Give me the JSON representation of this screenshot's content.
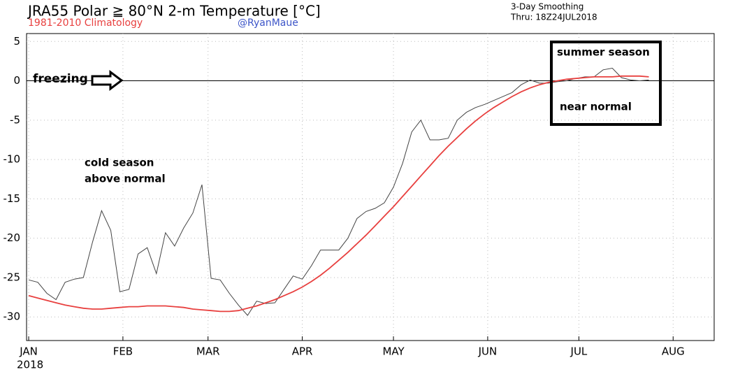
{
  "chart_data": {
    "type": "line",
    "title": "JRA55 Polar ≧ 80°N 2-m Temperature [°C]",
    "credit": "@RyanMaue",
    "note": "3-Day Smoothing",
    "valid_time": "Thru: 18Z24JUL2018",
    "year_label": "2018",
    "annotations": [
      "freezing",
      "cold season",
      "above normal",
      "summer season",
      "near normal"
    ],
    "x": [
      0,
      3,
      6,
      9,
      12,
      15,
      18,
      21,
      24,
      27,
      30,
      33,
      36,
      39,
      42,
      45,
      48,
      51,
      54,
      57,
      60,
      63,
      66,
      69,
      72,
      75,
      78,
      81,
      84,
      87,
      90,
      93,
      96,
      99,
      102,
      105,
      108,
      111,
      114,
      117,
      120,
      123,
      126,
      129,
      132,
      135,
      138,
      141,
      144,
      147,
      150,
      153,
      156,
      159,
      162,
      165,
      168,
      171,
      174,
      177,
      180,
      183,
      186,
      189,
      192,
      195,
      198,
      201,
      204
    ],
    "series": [
      {
        "color": "#444444",
        "values": [
          -25.3,
          -25.6,
          -27.0,
          -27.8,
          -25.6,
          -25.2,
          -25.0,
          -20.5,
          -16.5,
          -19,
          -26.8,
          -26.5,
          -22,
          -21.2,
          -24.5,
          -19.3,
          -21,
          -18.7,
          -16.8,
          -13.2,
          -25.1,
          -25.3,
          -27,
          -28.5,
          -29.8,
          -28,
          -28.3,
          -28.2,
          -26.5,
          -24.8,
          -25.2,
          -23.5,
          -21.5,
          -21.5,
          -21.5,
          -20,
          -17.5,
          -16.6,
          -16.2,
          -15.5,
          -13.5,
          -10.5,
          -6.5,
          -5,
          -7.5,
          -7.5,
          -7.3,
          -5,
          -4,
          -3.4,
          -3,
          -2.5,
          -2,
          -1.5,
          -0.5,
          0.1,
          -0.3,
          -0.3,
          -0.1,
          0,
          0.3,
          0.5,
          0.5,
          1.4,
          1.6,
          0.4,
          0.1,
          0,
          0.1
        ]
      },
      {
        "name": "1981-2010 Climatology",
        "color": "#e8403f",
        "values": [
          -27.3,
          -27.6,
          -27.9,
          -28.2,
          -28.5,
          -28.7,
          -28.9,
          -29.0,
          -29.0,
          -28.9,
          -28.8,
          -28.7,
          -28.7,
          -28.6,
          -28.6,
          -28.6,
          -28.7,
          -28.8,
          -29.0,
          -29.1,
          -29.2,
          -29.3,
          -29.3,
          -29.2,
          -28.9,
          -28.6,
          -28.2,
          -27.8,
          -27.3,
          -26.8,
          -26.2,
          -25.5,
          -24.7,
          -23.8,
          -22.8,
          -21.8,
          -20.7,
          -19.6,
          -18.4,
          -17.2,
          -16.0,
          -14.7,
          -13.4,
          -12.1,
          -10.8,
          -9.5,
          -8.3,
          -7.2,
          -6.1,
          -5.1,
          -4.2,
          -3.4,
          -2.7,
          -2.0,
          -1.4,
          -0.9,
          -0.5,
          -0.2,
          0.0,
          0.2,
          0.3,
          0.4,
          0.5,
          0.5,
          0.5,
          0.6,
          0.6,
          0.6,
          0.5
        ]
      }
    ],
    "reference_line": 0,
    "xlim": [
      -0.7,
      225.5
    ],
    "xticks": [
      {
        "value": 0,
        "label": "JAN"
      },
      {
        "value": 31,
        "label": "FEB"
      },
      {
        "value": 59,
        "label": "MAR"
      },
      {
        "value": 90,
        "label": "APR"
      },
      {
        "value": 120,
        "label": "MAY"
      },
      {
        "value": 151,
        "label": "JUN"
      },
      {
        "value": 181,
        "label": "JUL"
      },
      {
        "value": 212,
        "label": "AUG"
      }
    ],
    "ylim": [
      -33,
      6
    ],
    "yticks": [
      5,
      0,
      -5,
      -10,
      -15,
      -20,
      -25,
      -30
    ],
    "grid": true
  }
}
